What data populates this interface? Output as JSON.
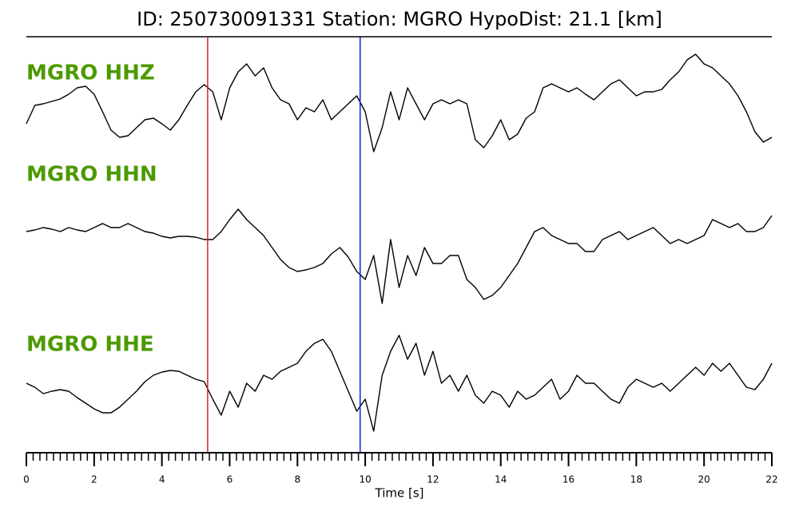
{
  "chart_data": {
    "type": "line",
    "title": "ID: 250730091331   Station: MGRO   HypoDist:    21.1 [km]",
    "xlabel": "Time [s]",
    "xlim": [
      0,
      22
    ],
    "xticks": [
      0,
      2,
      4,
      6,
      8,
      10,
      12,
      14,
      16,
      18,
      20,
      22
    ],
    "xminorstep": 0.2,
    "ylim": [
      -75,
      75
    ],
    "label_color": "#4c9a00",
    "picks": [
      {
        "x": 5.35,
        "color": "#e02020"
      },
      {
        "x": 9.85,
        "color": "#1a1adf"
      }
    ],
    "x": [
      0,
      0.25,
      0.5,
      0.75,
      1,
      1.25,
      1.5,
      1.75,
      2,
      2.25,
      2.5,
      2.75,
      3,
      3.25,
      3.5,
      3.75,
      4,
      4.25,
      4.5,
      4.75,
      5,
      5.25,
      5.5,
      5.75,
      6,
      6.25,
      6.5,
      6.75,
      7,
      7.25,
      7.5,
      7.75,
      8,
      8.25,
      8.5,
      8.75,
      9,
      9.25,
      9.5,
      9.75,
      10,
      10.25,
      10.5,
      10.75,
      11,
      11.25,
      11.5,
      11.75,
      12,
      12.25,
      12.5,
      12.75,
      13,
      13.25,
      13.5,
      13.75,
      14,
      14.25,
      14.5,
      14.75,
      15,
      15.25,
      15.5,
      15.75,
      16,
      16.25,
      16.5,
      16.75,
      17,
      17.25,
      17.5,
      17.75,
      18,
      18.25,
      18.5,
      18.75,
      19,
      19.25,
      19.5,
      19.75,
      20,
      20.25,
      20.5,
      20.75,
      21,
      21.25,
      21.5,
      21.75,
      22
    ],
    "series": [
      {
        "name": "MGRO HHZ",
        "color": "#000000",
        "values": [
          -20,
          3,
          5,
          8,
          11,
          17,
          25,
          27,
          17,
          -5,
          -28,
          -37,
          -35,
          -25,
          -15,
          -13,
          -20,
          -28,
          -15,
          3,
          20,
          29,
          20,
          -15,
          25,
          45,
          55,
          40,
          50,
          25,
          10,
          5,
          -15,
          0,
          -5,
          10,
          -15,
          -5,
          5,
          15,
          -5,
          -55,
          -25,
          20,
          -15,
          25,
          5,
          -15,
          5,
          10,
          5,
          10,
          5,
          -40,
          -50,
          -35,
          -15,
          -40,
          -33,
          -13,
          -5,
          25,
          30,
          25,
          20,
          25,
          17,
          10,
          20,
          30,
          35,
          25,
          15,
          20,
          20,
          23,
          35,
          45,
          60,
          67,
          55,
          50,
          40,
          30,
          15,
          -5,
          -30,
          -43,
          -37
        ]
      },
      {
        "name": "MGRO HHN",
        "color": "#000000",
        "values": [
          0,
          2,
          5,
          3,
          0,
          5,
          2,
          0,
          5,
          10,
          5,
          5,
          10,
          5,
          0,
          -2,
          -6,
          -8,
          -6,
          -6,
          -7,
          -10,
          -10,
          0,
          15,
          28,
          15,
          5,
          -5,
          -20,
          -35,
          -45,
          -50,
          -48,
          -45,
          -40,
          -28,
          -20,
          -32,
          -50,
          -60,
          -30,
          -90,
          -10,
          -70,
          -30,
          -55,
          -20,
          -40,
          -40,
          -30,
          -30,
          -60,
          -70,
          -85,
          -80,
          -70,
          -55,
          -40,
          -20,
          0,
          5,
          -5,
          -10,
          -15,
          -15,
          -25,
          -25,
          -10,
          -5,
          0,
          -10,
          -5,
          0,
          5,
          -5,
          -15,
          -10,
          -15,
          -10,
          -5,
          15,
          10,
          5,
          10,
          0,
          0,
          5,
          20
        ]
      },
      {
        "name": "MGRO HHE",
        "color": "#000000",
        "values": [
          0,
          -5,
          -13,
          -10,
          -8,
          -10,
          -18,
          -25,
          -32,
          -37,
          -37,
          -30,
          -20,
          -10,
          2,
          10,
          14,
          16,
          15,
          10,
          5,
          2,
          -20,
          -40,
          -10,
          -30,
          0,
          -10,
          10,
          5,
          15,
          20,
          25,
          40,
          50,
          55,
          40,
          15,
          -10,
          -35,
          -20,
          -60,
          10,
          40,
          60,
          30,
          50,
          10,
          40,
          0,
          10,
          -10,
          10,
          -15,
          -25,
          -10,
          -15,
          -30,
          -10,
          -20,
          -15,
          -5,
          5,
          -20,
          -10,
          10,
          0,
          0,
          -10,
          -20,
          -25,
          -5,
          5,
          0,
          -5,
          0,
          -10,
          0,
          10,
          20,
          10,
          25,
          15,
          25,
          10,
          -5,
          -8,
          5,
          25
        ]
      }
    ]
  }
}
